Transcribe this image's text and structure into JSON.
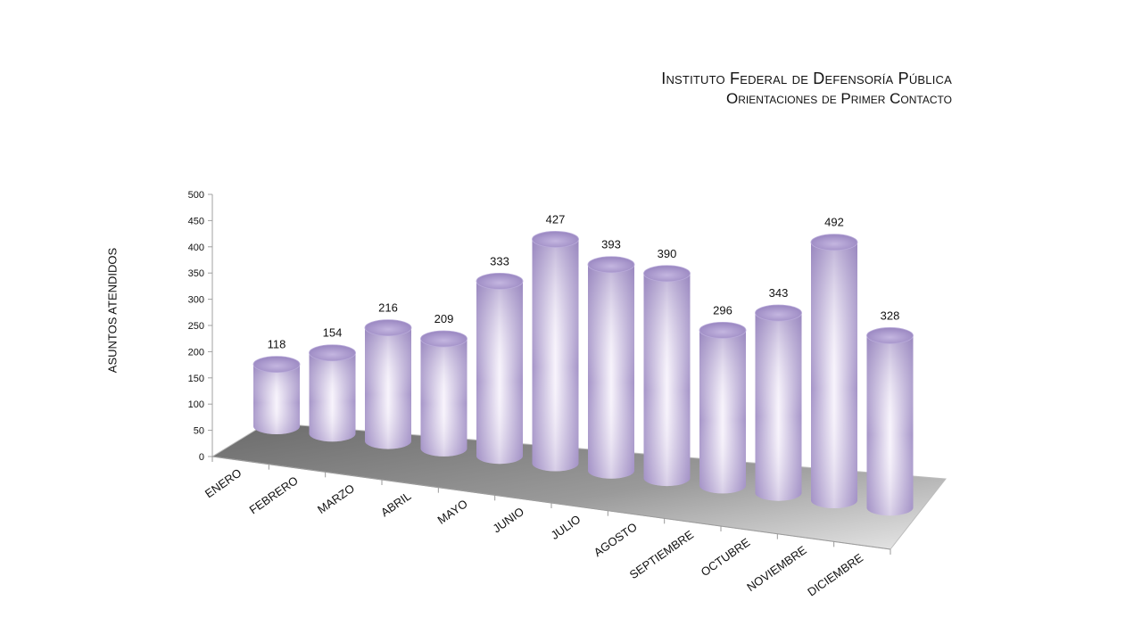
{
  "header": {
    "title": "Instituto Federal de Defensoría Pública",
    "subtitle": "Orientaciones de Primer Contacto"
  },
  "chart_data": {
    "type": "bar",
    "style": "3d-cylinder",
    "title": "Instituto Federal de Defensoría Pública",
    "subtitle": "Orientaciones de Primer Contacto",
    "xlabel": "",
    "ylabel": "ASUNTOS ATENDIDOS",
    "categories": [
      "ENERO",
      "FEBRERO",
      "MARZO",
      "ABRIL",
      "MAYO",
      "JUNIO",
      "JULIO",
      "AGOSTO",
      "SEPTIEMBRE",
      "OCTUBRE",
      "NOVIEMBRE",
      "DICIEMBRE"
    ],
    "values": [
      118,
      154,
      216,
      209,
      333,
      427,
      393,
      390,
      296,
      343,
      492,
      328
    ],
    "yticks": [
      0,
      50,
      100,
      150,
      200,
      250,
      300,
      350,
      400,
      450,
      500
    ],
    "ylim": [
      0,
      500
    ],
    "grid": false,
    "legend": "none",
    "colors": {
      "bar": "#a997c9",
      "bar_highlight": "#f7f3fb",
      "floor_dark": "#6e6e6e",
      "floor_light": "#e4e4e4"
    }
  }
}
